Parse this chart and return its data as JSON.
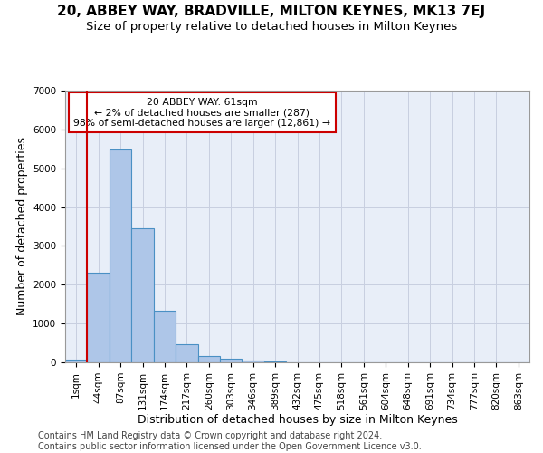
{
  "title1": "20, ABBEY WAY, BRADVILLE, MILTON KEYNES, MK13 7EJ",
  "title2": "Size of property relative to detached houses in Milton Keynes",
  "xlabel": "Distribution of detached houses by size in Milton Keynes",
  "ylabel": "Number of detached properties",
  "footer1": "Contains HM Land Registry data © Crown copyright and database right 2024.",
  "footer2": "Contains public sector information licensed under the Open Government Licence v3.0.",
  "bar_labels": [
    "1sqm",
    "44sqm",
    "87sqm",
    "131sqm",
    "174sqm",
    "217sqm",
    "260sqm",
    "303sqm",
    "346sqm",
    "389sqm",
    "432sqm",
    "475sqm",
    "518sqm",
    "561sqm",
    "604sqm",
    "648sqm",
    "691sqm",
    "734sqm",
    "777sqm",
    "820sqm",
    "863sqm"
  ],
  "bar_values": [
    80,
    2300,
    5480,
    3450,
    1320,
    470,
    160,
    90,
    55,
    35,
    0,
    0,
    0,
    0,
    0,
    0,
    0,
    0,
    0,
    0,
    0
  ],
  "bar_color": "#aec6e8",
  "bar_edge_color": "#4a90c4",
  "vline_color": "#cc0000",
  "vline_position": 0.5,
  "annotation_text": "20 ABBEY WAY: 61sqm\n← 2% of detached houses are smaller (287)\n98% of semi-detached houses are larger (12,861) →",
  "annotation_box_edge": "#cc0000",
  "ylim": [
    0,
    7000
  ],
  "yticks": [
    0,
    1000,
    2000,
    3000,
    4000,
    5000,
    6000,
    7000
  ],
  "grid_color": "#c8cfe0",
  "bg_color": "#e8eef8",
  "title1_fontsize": 11,
  "title2_fontsize": 9.5,
  "xlabel_fontsize": 9,
  "ylabel_fontsize": 9,
  "tick_fontsize": 7.5,
  "footer_fontsize": 7
}
